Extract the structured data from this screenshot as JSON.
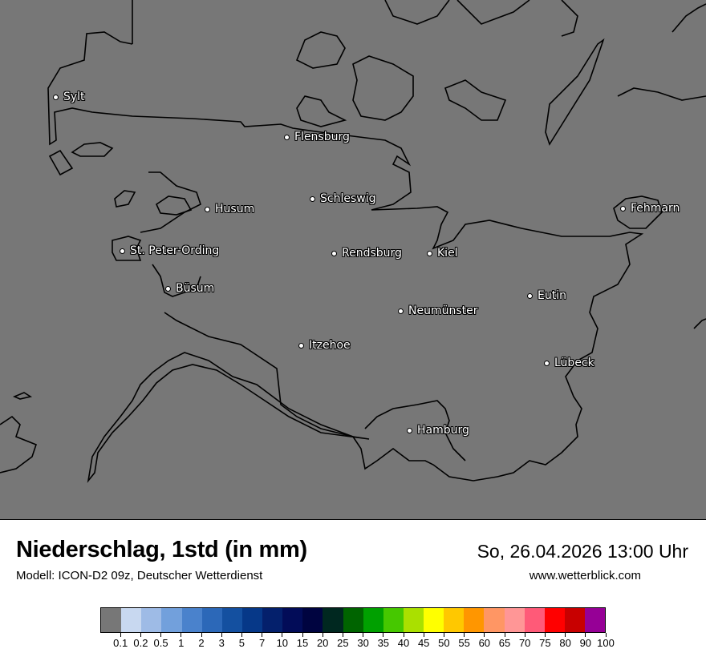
{
  "map": {
    "background_color": "#777777",
    "cities": [
      {
        "name": "Sylt"
      },
      {
        "name": "Flensburg"
      },
      {
        "name": "Schleswig"
      },
      {
        "name": "Husum"
      },
      {
        "name": "Fehmarn"
      },
      {
        "name": "St. Peter-Ording"
      },
      {
        "name": "Rendsburg"
      },
      {
        "name": "Kiel"
      },
      {
        "name": "Büsum"
      },
      {
        "name": "Eutin"
      },
      {
        "name": "Neumünster"
      },
      {
        "name": "Itzehoe"
      },
      {
        "name": "Lübeck"
      },
      {
        "name": "Hamburg"
      }
    ]
  },
  "footer": {
    "title": "Niederschlag, 1std (in mm)",
    "subtitle": "Modell: ICON-D2 09z, Deutscher Wetterdienst",
    "datetime": "So, 26.04.2026 13:00 Uhr",
    "website": "www.wetterblick.com"
  },
  "legend": {
    "colors": [
      "#777777",
      "#c8d8f0",
      "#9ebbe6",
      "#72a0dc",
      "#4a82cc",
      "#2c68b8",
      "#1450a0",
      "#063888",
      "#04206c",
      "#020c58",
      "#000440",
      "#002820",
      "#006400",
      "#00a000",
      "#46c800",
      "#aae000",
      "#ffff00",
      "#ffc800",
      "#ff9600",
      "#ff9664",
      "#ff9696",
      "#ff5a78",
      "#ff0000",
      "#c80000",
      "#960096"
    ],
    "labels": [
      "0.1",
      "0.2",
      "0.5",
      "1",
      "2",
      "3",
      "5",
      "7",
      "10",
      "15",
      "20",
      "25",
      "30",
      "35",
      "40",
      "45",
      "50",
      "55",
      "60",
      "65",
      "70",
      "75",
      "80",
      "90",
      "100"
    ]
  }
}
